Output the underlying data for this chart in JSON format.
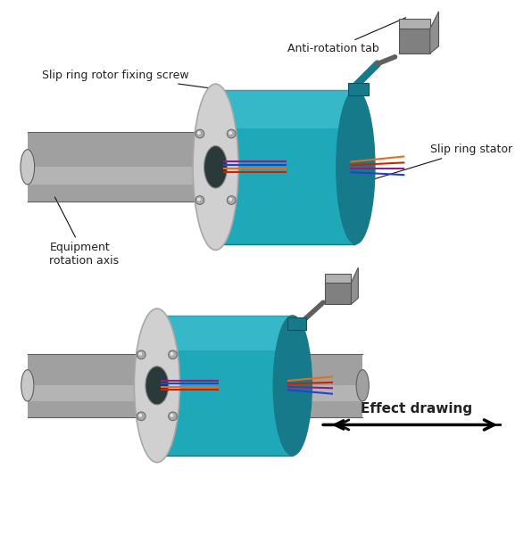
{
  "bg_color": "#ffffff",
  "teal_main": "#1fa8b8",
  "teal_dark": "#177a8a",
  "teal_light": "#4dc8d8",
  "gray_shaft": "#a0a0a0",
  "gray_shaft_light": "#c8c8c8",
  "gray_dark": "#606060",
  "silver": "#d0d0d0",
  "silver_dark": "#a8a8a8",
  "white": "#ffffff",
  "tab_gray": "#808080",
  "tab_gray_light": "#b0b0b0",
  "wire_red": "#cc2200",
  "wire_orange": "#e07020",
  "wire_blue": "#2244cc",
  "wire_purple": "#882288",
  "wire_green": "#228822",
  "annotation_color": "#222222",
  "arrow_color": "#111111",
  "labels": {
    "slip_ring_rotor": "Slip ring rotor fixing screw",
    "anti_rotation": "Anti-rotation tab",
    "slip_ring_stator": "Slip ring stator",
    "equipment_axis": "Equipment\nrotation axis",
    "effect_drawing": "Effect drawing"
  },
  "figsize": [
    5.96,
    6.0
  ],
  "dpi": 100
}
